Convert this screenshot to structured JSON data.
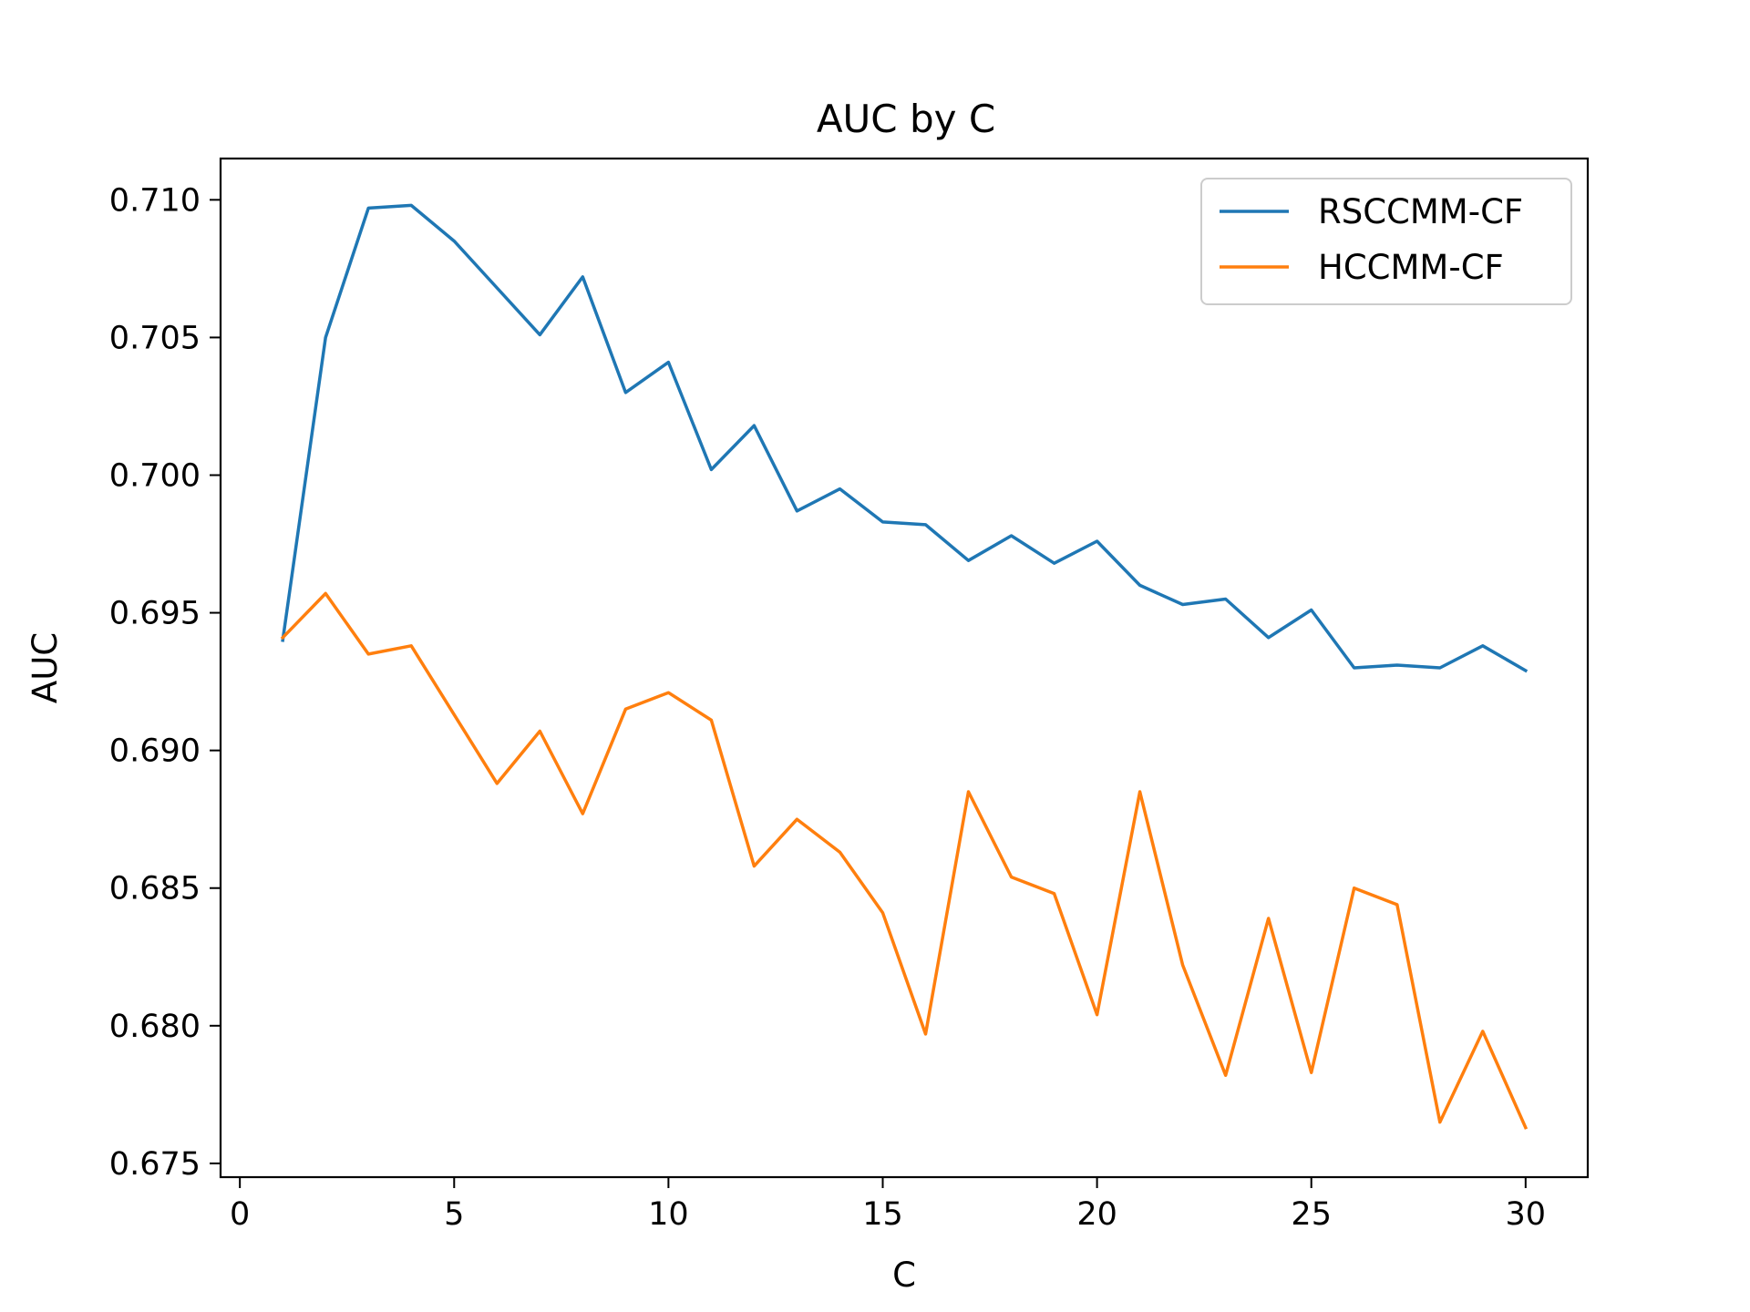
{
  "chart_data": {
    "type": "line",
    "title": "AUC by C",
    "xlabel": "C",
    "ylabel": "AUC",
    "xlim": [
      -0.45,
      31.45
    ],
    "ylim": [
      0.6745,
      0.7115
    ],
    "xticks": [
      0,
      5,
      10,
      15,
      20,
      25,
      30
    ],
    "yticks": [
      0.675,
      0.68,
      0.685,
      0.69,
      0.695,
      0.7,
      0.705,
      0.71
    ],
    "xtick_labels": [
      "0",
      "5",
      "10",
      "15",
      "20",
      "25",
      "30"
    ],
    "ytick_labels": [
      "0.675",
      "0.680",
      "0.685",
      "0.690",
      "0.695",
      "0.700",
      "0.705",
      "0.710"
    ],
    "grid": false,
    "legend_position": "top-right",
    "x": [
      1,
      2,
      3,
      4,
      5,
      6,
      7,
      8,
      9,
      10,
      11,
      12,
      13,
      14,
      15,
      16,
      17,
      18,
      19,
      20,
      21,
      22,
      23,
      24,
      25,
      26,
      27,
      28,
      29,
      30
    ],
    "series": [
      {
        "name": "RSCCMM-CF",
        "color": "#1f77b4",
        "values": [
          0.694,
          0.705,
          0.7097,
          0.7098,
          0.7085,
          0.7068,
          0.7051,
          0.7072,
          0.703,
          0.7041,
          0.7002,
          0.7018,
          0.6987,
          0.6995,
          0.6983,
          0.6982,
          0.6969,
          0.6978,
          0.6968,
          0.6976,
          0.696,
          0.6953,
          0.6955,
          0.6941,
          0.6951,
          0.693,
          0.6931,
          0.693,
          0.6938,
          0.6929
        ]
      },
      {
        "name": "HCCMM-CF",
        "color": "#ff7f0e",
        "values": [
          0.6941,
          0.6957,
          0.6935,
          0.6938,
          0.6913,
          0.6888,
          0.6907,
          0.6877,
          0.6915,
          0.6921,
          0.6911,
          0.6858,
          0.6875,
          0.6863,
          0.6841,
          0.6797,
          0.6885,
          0.6854,
          0.6848,
          0.6804,
          0.6885,
          0.6822,
          0.6782,
          0.6839,
          0.6783,
          0.685,
          0.6844,
          0.6765,
          0.6798,
          0.6763
        ]
      }
    ]
  }
}
